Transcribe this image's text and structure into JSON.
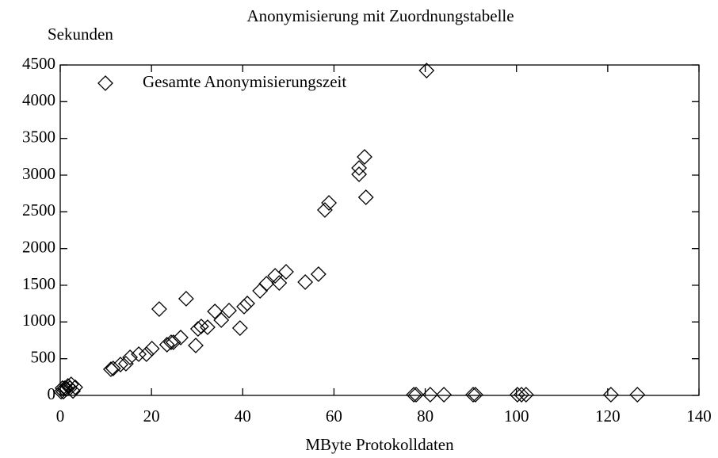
{
  "chart_data": {
    "type": "scatter",
    "title": "Anonymisierung mit Zuordnungstabelle",
    "y_label": "Sekunden",
    "x_label": "MByte Protokolldaten",
    "legend": "top-left",
    "series": [
      {
        "name": "Gesamte Anonymisierungszeit",
        "color": "#000000",
        "x": [
          0.2,
          0.5,
          0.7,
          1,
          1.4,
          1.7,
          2.1,
          2.4,
          2.8,
          3.3,
          11.1,
          11.6,
          13.2,
          14.4,
          15.3,
          17.2,
          18.9,
          20.1,
          21.7,
          23.4,
          24.3,
          24.8,
          26.4,
          27.6,
          29.7,
          30.2,
          30.9,
          32.3,
          33.9,
          35.3,
          37,
          39.4,
          40.3,
          41,
          43.8,
          45.2,
          47.1,
          48,
          49.5,
          53.7,
          56.6,
          58,
          58.9,
          65.5,
          65.5,
          66.7,
          67,
          80.3,
          77.5,
          78,
          81.1,
          84.1,
          90.5,
          91,
          100.2,
          101.1,
          102.1,
          120.7,
          126.5
        ],
        "values": [
          50,
          100,
          50,
          100,
          90,
          130,
          100,
          150,
          60,
          110,
          356,
          367,
          420,
          432,
          518,
          561,
          561,
          637,
          1176,
          691,
          723,
          723,
          788,
          1317,
          680,
          906,
          939,
          928,
          1144,
          1025,
          1155,
          917,
          1209,
          1252,
          1424,
          1521,
          1629,
          1532,
          1683,
          1543,
          1651,
          2525,
          2622,
          3097,
          3011,
          3248,
          2698,
          4424,
          10,
          10,
          10,
          10,
          10,
          10,
          10,
          10,
          10,
          10,
          10
        ]
      }
    ],
    "xlim": [
      0,
      140
    ],
    "xticks": [
      0,
      20,
      40,
      60,
      80,
      100,
      120,
      140
    ],
    "ylim": [
      0,
      4500
    ],
    "yticks": [
      0,
      500,
      1000,
      1500,
      2000,
      2500,
      3000,
      3500,
      4000,
      4500
    ]
  }
}
